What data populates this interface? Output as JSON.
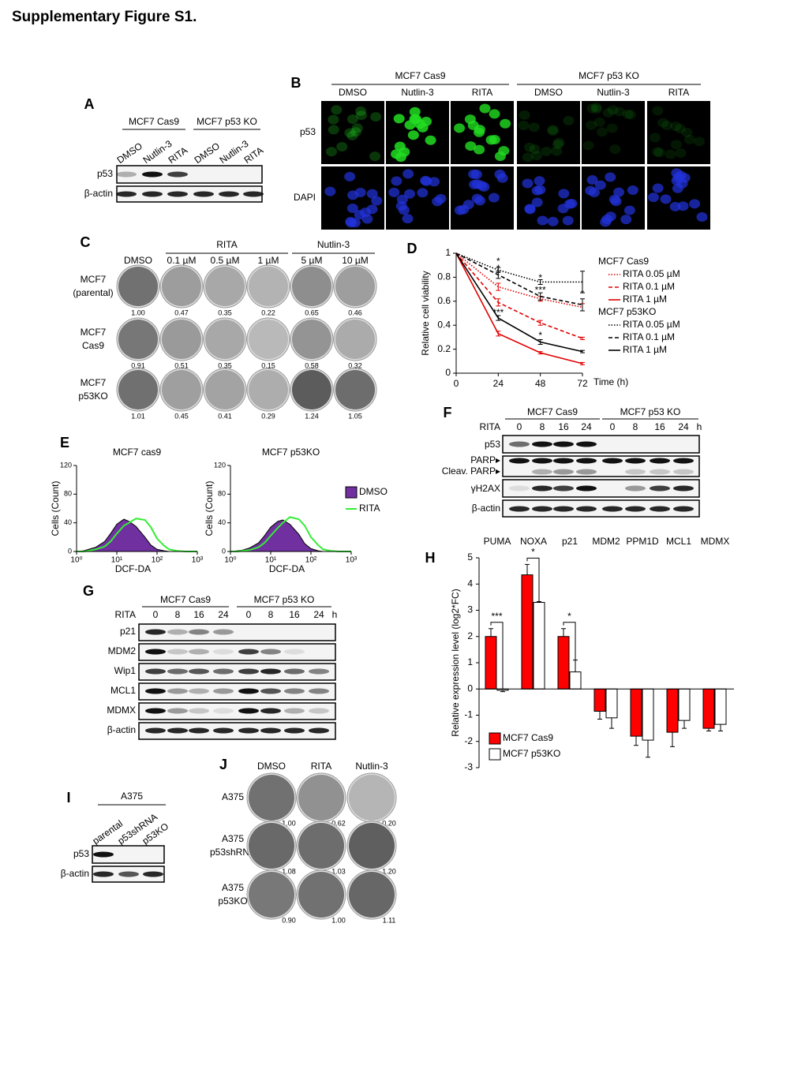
{
  "title": "Supplementary Figure S1.",
  "panel_labels": [
    "A",
    "B",
    "C",
    "D",
    "E",
    "F",
    "G",
    "H",
    "I",
    "J"
  ],
  "panel_a": {
    "groups": [
      "MCF7 Cas9",
      "MCF7 p53 KO"
    ],
    "lanes": [
      "DMSO",
      "Nutlin-3",
      "RITA",
      "DMSO",
      "Nutlin-3",
      "RITA"
    ],
    "rows": [
      "p53",
      "β-actin"
    ]
  },
  "panel_b": {
    "groups": [
      "MCF7 Cas9",
      "MCF7 p53 KO"
    ],
    "columns": [
      "DMSO",
      "Nutlin-3",
      "RITA",
      "DMSO",
      "Nutlin-3",
      "RITA"
    ],
    "rows": [
      "p53",
      "DAPI"
    ]
  },
  "panel_c": {
    "groups": [
      "RITA",
      "Nutlin-3"
    ],
    "columns": [
      "DMSO",
      "0.1 µM",
      "0.5 µM",
      "1 µM",
      "5 µM",
      "10 µM"
    ],
    "rows": [
      {
        "label": [
          "MCF7",
          "(parental)"
        ],
        "values": [
          "1.00",
          "0.47",
          "0.35",
          "0.22",
          "0.65",
          "0.46"
        ]
      },
      {
        "label": [
          "MCF7",
          "Cas9"
        ],
        "values": [
          "0.91",
          "0.51",
          "0.35",
          "0.15",
          "0.58",
          "0.32"
        ]
      },
      {
        "label": [
          "MCF7",
          "p53KO"
        ],
        "values": [
          "1.01",
          "0.45",
          "0.41",
          "0.29",
          "1.24",
          "1.05"
        ]
      }
    ]
  },
  "panel_f": {
    "groups": [
      "MCF7 Cas9",
      "MCF7 p53 KO"
    ],
    "treatment": "RITA",
    "lanes": [
      "0",
      "8",
      "16",
      "24",
      "0",
      "8",
      "16",
      "24"
    ],
    "unit": "h",
    "rows": [
      "p53",
      "PARP▸",
      "Cleav. PARP▸",
      "γH2AX",
      "β-actin"
    ]
  },
  "panel_g": {
    "groups": [
      "MCF7 Cas9",
      "MCF7 p53 KO"
    ],
    "treatment": "RITA",
    "lanes": [
      "0",
      "8",
      "16",
      "24",
      "0",
      "8",
      "16",
      "24"
    ],
    "unit": "h",
    "rows": [
      "p21",
      "MDM2",
      "Wip1",
      "MCL1",
      "MDMX",
      "β-actin"
    ]
  },
  "panel_i": {
    "group": "A375",
    "lanes": [
      "parental",
      "p53shRNA",
      "p53KO"
    ],
    "rows": [
      "p53",
      "β-actin"
    ]
  },
  "panel_j": {
    "columns": [
      "DMSO",
      "RITA",
      "Nutlin-3"
    ],
    "rows": [
      {
        "label": [
          "A375"
        ],
        "values": [
          "1.00",
          "0.62",
          "0.20"
        ]
      },
      {
        "label": [
          "A375",
          "p53shRNA"
        ],
        "values": [
          "1.08",
          "1.03",
          "1.20"
        ]
      },
      {
        "label": [
          "A375",
          "p53KO"
        ],
        "values": [
          "0.90",
          "1.00",
          "1.11"
        ]
      }
    ]
  },
  "chart_data": [
    {
      "type": "line",
      "ylabel": "Relative cell viability",
      "xlabel": "Time (h)",
      "x": [
        0,
        24,
        48,
        72
      ],
      "xlim": [
        0,
        72
      ],
      "xticks": [
        0,
        24,
        48,
        72
      ],
      "ylim": [
        0,
        1
      ],
      "yticks": [
        0,
        0.2,
        0.4,
        0.6,
        0.8,
        1
      ],
      "series_groups": [
        {
          "name": "MCF7 Cas9",
          "series": [
            {
              "name": "RITA 0.05 µM",
              "color": "#e00000",
              "dash": "dotted",
              "values": [
                1,
                0.72,
                0.62,
                0.55
              ],
              "errors": [
                0,
                0.03,
                0.02,
                0.03
              ]
            },
            {
              "name": "RITA 0.1 µM",
              "color": "#e00000",
              "dash": "dashed",
              "values": [
                1,
                0.59,
                0.42,
                0.29
              ],
              "errors": [
                0,
                0.03,
                0.02,
                0.01
              ]
            },
            {
              "name": "RITA 1 µM",
              "color": "#e00000",
              "dash": "solid",
              "values": [
                1,
                0.33,
                0.17,
                0.08
              ],
              "errors": [
                0,
                0.02,
                0.01,
                0.01
              ]
            }
          ]
        },
        {
          "name": "MCF7 p53KO",
          "series": [
            {
              "name": "RITA 0.05 µM",
              "color": "#000000",
              "dash": "dotted",
              "values": [
                1,
                0.86,
                0.76,
                0.76
              ],
              "errors": [
                0,
                0.02,
                0.02,
                0.09
              ]
            },
            {
              "name": "RITA 0.1 µM",
              "color": "#000000",
              "dash": "dashed",
              "values": [
                1,
                0.82,
                0.64,
                0.57
              ],
              "errors": [
                0,
                0.03,
                0.03,
                0.05
              ]
            },
            {
              "name": "RITA 1 µM",
              "color": "#000000",
              "dash": "solid",
              "values": [
                1,
                0.46,
                0.26,
                0.18
              ],
              "errors": [
                0,
                0.02,
                0.02,
                0.01
              ]
            }
          ]
        }
      ],
      "annotations": [
        {
          "x": 24,
          "y": 0.93,
          "text": "*"
        },
        {
          "x": 24,
          "y": 0.87,
          "text": "*"
        },
        {
          "x": 24,
          "y": 0.5,
          "text": "***"
        },
        {
          "x": 48,
          "y": 0.79,
          "text": "*"
        },
        {
          "x": 48,
          "y": 0.69,
          "text": "***"
        },
        {
          "x": 48,
          "y": 0.31,
          "text": "*"
        },
        {
          "x": 72,
          "y": 0.66,
          "text": "*"
        }
      ]
    },
    {
      "type": "area",
      "title": "MCF7 cas9",
      "xlabel": "DCF-DA",
      "ylabel": "Cells (Count)",
      "xscale": "log",
      "xlim": [
        1,
        1000
      ],
      "xticks": [
        {
          "value": 1,
          "label": "10⁰"
        },
        {
          "value": 10,
          "label": "10¹"
        },
        {
          "value": 100,
          "label": "10²"
        },
        {
          "value": 1000,
          "label": "10³"
        }
      ],
      "ylim": [
        0,
        120
      ],
      "yticks": [
        0,
        40,
        80,
        120
      ],
      "legend": false,
      "x": [
        1,
        1.5,
        2,
        3,
        5,
        7,
        10,
        15,
        20,
        30,
        50,
        70,
        100,
        150,
        200,
        300,
        500,
        1000
      ],
      "series": [
        {
          "name": "DMSO",
          "color": "#7030a0",
          "fill": true,
          "values": [
            0,
            1,
            3,
            6,
            14,
            25,
            38,
            45,
            42,
            35,
            20,
            9,
            3,
            1,
            0,
            0,
            0,
            0
          ]
        },
        {
          "name": "RITA",
          "color": "#33ee33",
          "fill": false,
          "values": [
            0,
            0,
            1,
            3,
            7,
            14,
            25,
            36,
            40,
            46,
            44,
            34,
            18,
            8,
            3,
            1,
            0,
            0
          ]
        }
      ]
    },
    {
      "type": "area",
      "title": "MCF7 p53KO",
      "xlabel": "DCF-DA",
      "ylabel": "Cells (Count)",
      "xscale": "log",
      "xlim": [
        1,
        1000
      ],
      "xticks": [
        {
          "value": 1,
          "label": "10⁰"
        },
        {
          "value": 10,
          "label": "10¹"
        },
        {
          "value": 100,
          "label": "10²"
        },
        {
          "value": 1000,
          "label": "10³"
        }
      ],
      "ylim": [
        0,
        120
      ],
      "yticks": [
        0,
        40,
        80,
        120
      ],
      "legend": true,
      "x": [
        1,
        1.5,
        2,
        3,
        5,
        7,
        10,
        15,
        20,
        30,
        50,
        70,
        100,
        150,
        200,
        300,
        500,
        1000
      ],
      "series": [
        {
          "name": "DMSO",
          "color": "#7030a0",
          "fill": true,
          "values": [
            0,
            1,
            2,
            5,
            12,
            22,
            34,
            42,
            44,
            38,
            24,
            11,
            4,
            1,
            0,
            0,
            0,
            0
          ]
        },
        {
          "name": "RITA",
          "color": "#33ee33",
          "fill": false,
          "values": [
            0,
            0,
            1,
            2,
            6,
            12,
            22,
            33,
            40,
            48,
            45,
            36,
            20,
            9,
            3,
            1,
            0,
            0
          ]
        }
      ]
    },
    {
      "type": "bar",
      "ylabel": "Relative expression  level (log2*FC)",
      "categories": [
        "PUMA",
        "NOXA",
        "p21",
        "MDM2",
        "PPM1D",
        "MCL1",
        "MDMX"
      ],
      "ylim": [
        -3,
        5
      ],
      "yticks": [
        -3,
        -2,
        -1,
        0,
        1,
        2,
        3,
        4,
        5
      ],
      "series": [
        {
          "name": "MCF7 Cas9",
          "color": "#ff0000",
          "values": [
            2.0,
            4.35,
            2.0,
            -0.85,
            -1.8,
            -1.65,
            -1.5
          ],
          "errors": [
            0.3,
            0.4,
            0.3,
            0.3,
            0.35,
            0.55,
            0.1
          ]
        },
        {
          "name": "MCF7 p53KO",
          "color": "#ffffff",
          "values": [
            -0.05,
            3.3,
            0.65,
            -1.1,
            -1.95,
            -1.2,
            -1.35
          ],
          "errors": [
            0.05,
            0.03,
            0.45,
            0.4,
            0.65,
            0.3,
            0.25
          ]
        }
      ],
      "significance": [
        "***",
        "*",
        "*",
        null,
        null,
        null,
        null
      ]
    }
  ]
}
